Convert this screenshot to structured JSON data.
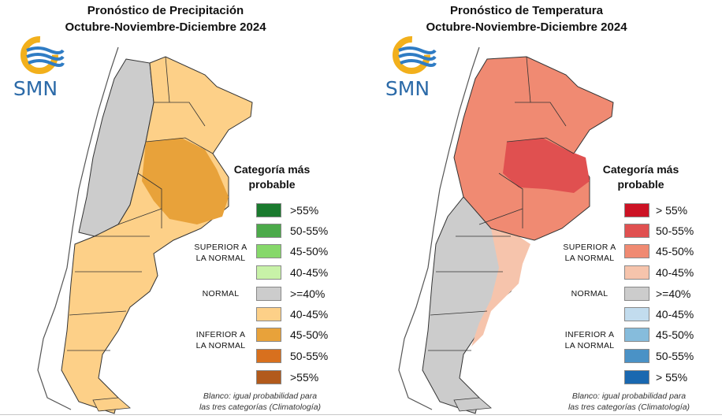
{
  "precipitation": {
    "title_line1": "Pronóstico de Precipitación",
    "title_line2": "Octubre-Noviembre-Diciembre 2024",
    "legend_title_line1": "Categoría más",
    "legend_title_line2": "probable",
    "superior_line1": "SUPERIOR A",
    "superior_line2": "LA NORMAL",
    "normal": "NORMAL",
    "inferior_line1": "INFERIOR A",
    "inferior_line2": "LA NORMAL",
    "legend": [
      {
        "label": ">55%",
        "color": "#1a7a2e"
      },
      {
        "label": "50-55%",
        "color": "#4caa4a"
      },
      {
        "label": "45-50%",
        "color": "#86d86a"
      },
      {
        "label": "40-45%",
        "color": "#c8f2a8"
      },
      {
        "label": ">=40%",
        "color": "#cccccc"
      },
      {
        "label": "40-45%",
        "color": "#fdd088"
      },
      {
        "label": "45-50%",
        "color": "#e8a23a"
      },
      {
        "label": "50-55%",
        "color": "#d8701e"
      },
      {
        "label": ">55%",
        "color": "#b25a1c"
      }
    ],
    "footnote_line1": "Blanco: igual probabilidad para",
    "footnote_line2": "las tres categorías (Climatología)"
  },
  "temperature": {
    "title_line1": "Pronóstico de Temperatura",
    "title_line2": "Octubre-Noviembre-Diciembre 2024",
    "legend_title_line1": "Categoría más",
    "legend_title_line2": "probable",
    "superior_line1": "SUPERIOR A",
    "superior_line2": "LA NORMAL",
    "normal": "NORMAL",
    "inferior_line1": "INFERIOR A",
    "inferior_line2": "LA NORMAL",
    "legend": [
      {
        "label": "> 55%",
        "color": "#cc1224"
      },
      {
        "label": "50-55%",
        "color": "#e05050"
      },
      {
        "label": "45-50%",
        "color": "#f08a72"
      },
      {
        "label": "40-45%",
        "color": "#f6c4ac"
      },
      {
        "label": ">=40%",
        "color": "#cccccc"
      },
      {
        "label": "40-45%",
        "color": "#c2dcee"
      },
      {
        "label": "45-50%",
        "color": "#86bcdc"
      },
      {
        "label": "50-55%",
        "color": "#4a92c6"
      },
      {
        "label": "> 55%",
        "color": "#1a68b0"
      }
    ],
    "footnote_line1": "Blanco: igual probabilidad para",
    "footnote_line2": "las tres categorías (Climatología)"
  },
  "logo": {
    "text": "SMN",
    "ring_color": "#f2b01c",
    "wave_color": "#2f7cc4"
  },
  "map_colors": {
    "land_outline": "#555555",
    "country_outline": "#333333",
    "neighbor_land": "#ffffff",
    "sea": "#ffffff",
    "precip_base": "#fdd088",
    "precip_strong": "#e8a23a",
    "precip_normal": "#cccccc",
    "temp_strong": "#e05050",
    "temp_base": "#f08a72",
    "temp_weak": "#f6c4ac",
    "temp_normal": "#cccccc"
  }
}
